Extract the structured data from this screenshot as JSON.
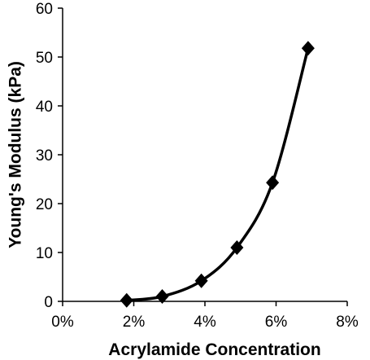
{
  "chart_data": {
    "type": "scatter",
    "title": "",
    "xlabel": "Acrylamide Concentration",
    "ylabel": "Young's Modulus (kPa)",
    "xlim": [
      0,
      8
    ],
    "ylim": [
      0,
      60
    ],
    "x_ticks": [
      "0%",
      "2%",
      "4%",
      "6%",
      "8%"
    ],
    "y_ticks": [
      "0",
      "10",
      "20",
      "30",
      "40",
      "50",
      "60"
    ],
    "grid": false,
    "legend": "none",
    "marker": "diamond",
    "trendline": "smooth curve",
    "series": [
      {
        "x": [
          1.8,
          2.8,
          3.9,
          4.9,
          5.9,
          6.9
        ],
        "y": [
          0.2,
          1.0,
          4.2,
          11.0,
          24.3,
          51.8
        ]
      }
    ],
    "colors": {
      "marker": "#000000",
      "line": "#000000"
    }
  }
}
